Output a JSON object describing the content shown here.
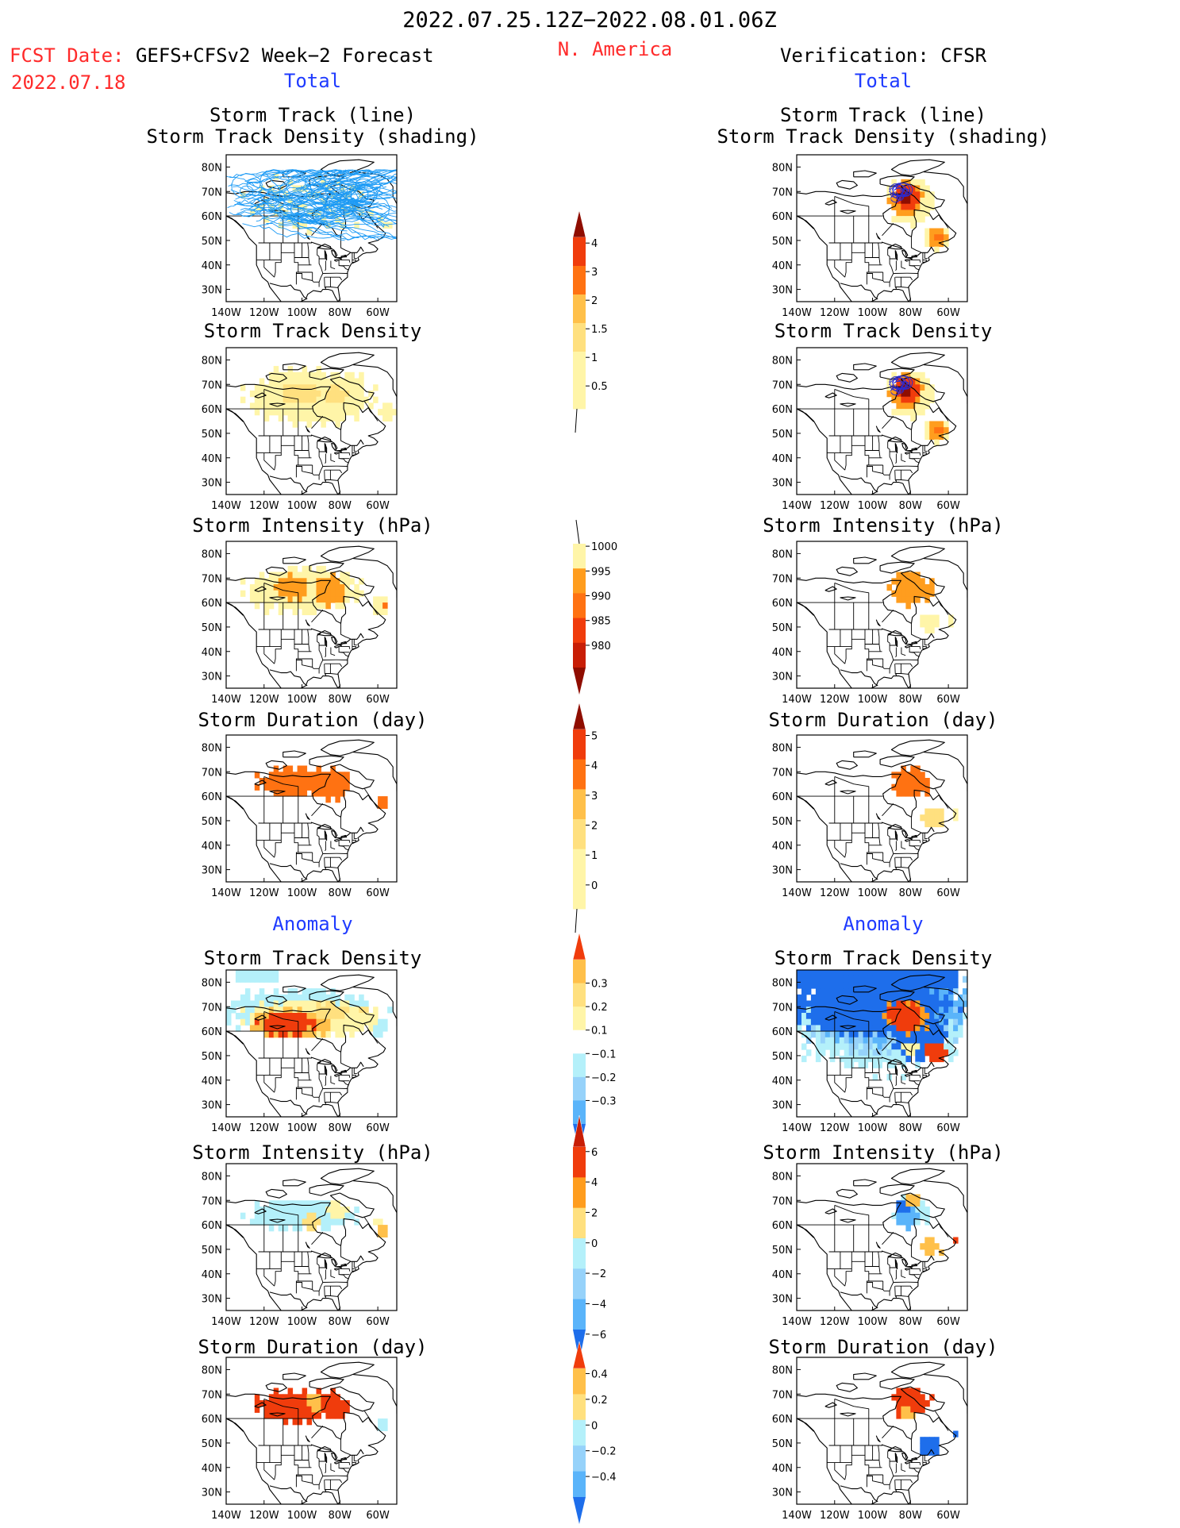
{
  "header": {
    "period": "2022.07.25.12Z−2022.08.01.06Z",
    "fcst_prefix": "FCST Date:",
    "fcst_model": "GEFS+CFSv2 Week−2 Forecast",
    "fcst_date": "2022.07.18",
    "region": "N. America",
    "verification": "Verification: CFSR"
  },
  "sections": {
    "total": "Total",
    "anomaly": "Anomaly"
  },
  "panel_titles": {
    "track_line": "Storm Track (line)",
    "track_shading": "Storm Track Density (shading)",
    "density": "Storm Track Density",
    "intensity": "Storm Intensity (hPa)",
    "duration": "Storm Duration (day)"
  },
  "axes": {
    "lat_ticks": [
      "80N",
      "70N",
      "60N",
      "50N",
      "40N",
      "30N"
    ],
    "lon_ticks": [
      "140W",
      "120W",
      "100W",
      "80W",
      "60W"
    ]
  },
  "colors": {
    "yellow1": "#fff5a8",
    "yellow2": "#ffe07f",
    "orange1": "#ffc04a",
    "orange2": "#ff9d1e",
    "orange3": "#ff7212",
    "red1": "#f03c0c",
    "red2": "#c81e06",
    "darkred": "#8f0d00",
    "lightblue": "#b4f0fa",
    "blue1": "#96d2fa",
    "blue2": "#5ab4fa",
    "blue3": "#1e6eeb",
    "track": "#1e9bf5"
  },
  "colorbars": {
    "total_density": [
      "0.5",
      "1",
      "1.5",
      "2",
      "3",
      "4"
    ],
    "total_intensity": [
      "1000",
      "995",
      "990",
      "985",
      "980"
    ],
    "total_duration": [
      "0",
      "1",
      "2",
      "3",
      "4",
      "5"
    ],
    "anom_density": [
      "0.3",
      "0.2",
      "0.1",
      "−0.1",
      "−0.2",
      "−0.3"
    ],
    "anom_intensity": [
      "6",
      "4",
      "2",
      "0",
      "−2",
      "−4",
      "−6"
    ],
    "anom_duration": [
      "0.4",
      "0.2",
      "0",
      "−0.2",
      "−0.4"
    ]
  },
  "chart_data": {
    "type": "heatmap",
    "title": "2022.07.25.12Z−2022.08.01.06Z N. America",
    "lon_range": [
      "140W",
      "50W"
    ],
    "lat_range": [
      "25N",
      "85N"
    ],
    "panels": [
      {
        "name": "Forecast Storm Track Density (total)",
        "levels": [
          0.5,
          1,
          1.5,
          2,
          3,
          4
        ],
        "regions": [
          {
            "lon": [
              125,
              60
            ],
            "lat": [
              55,
              75
            ],
            "value": 0.5
          },
          {
            "lon": [
              110,
              90
            ],
            "lat": [
              62,
              70
            ],
            "value": 1
          }
        ]
      },
      {
        "name": "Forecast Storm Intensity (total)",
        "levels": [
          1000,
          995,
          990,
          985,
          980
        ],
        "regions": [
          {
            "lon": [
              115,
              100
            ],
            "lat": [
              62,
              72
            ],
            "value": 995
          },
          {
            "lon": [
              95,
              80
            ],
            "lat": [
              58,
              72
            ],
            "value": 995
          },
          {
            "lon": [
              60,
              55
            ],
            "lat": [
              58,
              62
            ],
            "value": 990
          }
        ]
      },
      {
        "name": "Forecast Storm Duration (total)",
        "levels": [
          0,
          1,
          2,
          3,
          4,
          5
        ],
        "regions": [
          {
            "lon": [
              120,
              75
            ],
            "lat": [
              58,
              72
            ],
            "value": 3
          },
          {
            "lon": [
              60,
              55
            ],
            "lat": [
              56,
              60
            ],
            "value": 3
          }
        ]
      },
      {
        "name": "CFSR Storm Track Density (total)",
        "levels": [
          0.5,
          1,
          1.5,
          2,
          3,
          4
        ],
        "regions": [
          {
            "lon": [
              90,
              70
            ],
            "lat": [
              62,
              74
            ],
            "value": 3
          },
          {
            "lon": [
              85,
              78
            ],
            "lat": [
              66,
              71
            ],
            "value": 4
          },
          {
            "lon": [
              70,
              60
            ],
            "lat": [
              46,
              54
            ],
            "value": 2
          }
        ]
      },
      {
        "name": "Forecast Density Anomaly",
        "levels": [
          -0.3,
          -0.2,
          -0.1,
          0.1,
          0.2,
          0.3
        ],
        "regions": [
          {
            "lon": [
              125,
              95
            ],
            "lat": [
              60,
              70
            ],
            "value": 0.3
          },
          {
            "lon": [
              95,
              70
            ],
            "lat": [
              60,
              72
            ],
            "value": 0.1
          },
          {
            "lon": [
              135,
              110
            ],
            "lat": [
              80,
              85
            ],
            "value": -0.1
          }
        ]
      },
      {
        "name": "CFSR Density Anomaly",
        "levels": [
          -0.3,
          -0.2,
          -0.1,
          0.1,
          0.2,
          0.3
        ],
        "regions": [
          {
            "lon": [
              140,
              55
            ],
            "lat": [
              55,
              85
            ],
            "value": -0.3
          },
          {
            "lon": [
              95,
              70
            ],
            "lat": [
              60,
              72
            ],
            "value": 0.3
          },
          {
            "lon": [
              75,
              65
            ],
            "lat": [
              48,
              55
            ],
            "value": 0.3
          }
        ]
      },
      {
        "name": "Forecast Intensity Anomaly",
        "levels": [
          -6,
          -4,
          -2,
          0,
          2,
          4,
          6
        ],
        "regions": [
          {
            "lon": [
              125,
              75
            ],
            "lat": [
              60,
              68
            ],
            "value": -2
          },
          {
            "lon": [
              100,
              90
            ],
            "lat": [
              56,
              66
            ],
            "value": 2
          }
        ]
      },
      {
        "name": "CFSR Intensity Anomaly",
        "levels": [
          -6,
          -4,
          -2,
          0,
          2,
          4,
          6
        ],
        "regions": [
          {
            "lon": [
              90,
              72
            ],
            "lat": [
              58,
              70
            ],
            "value": -4
          },
          {
            "lon": [
              75,
              65
            ],
            "lat": [
              48,
              54
            ],
            "value": 4
          }
        ]
      },
      {
        "name": "Forecast Duration Anomaly",
        "levels": [
          -0.4,
          -0.2,
          0,
          0.2,
          0.4
        ],
        "regions": [
          {
            "lon": [
              120,
              75
            ],
            "lat": [
              58,
              72
            ],
            "value": 0.4
          }
        ]
      },
      {
        "name": "CFSR Duration Anomaly",
        "levels": [
          -0.4,
          -0.2,
          0,
          0.2,
          0.4
        ],
        "regions": [
          {
            "lon": [
              90,
              72
            ],
            "lat": [
              62,
              72
            ],
            "value": 0.4
          },
          {
            "lon": [
              76,
              64
            ],
            "lat": [
              46,
              54
            ],
            "value": -0.4
          }
        ]
      }
    ]
  }
}
